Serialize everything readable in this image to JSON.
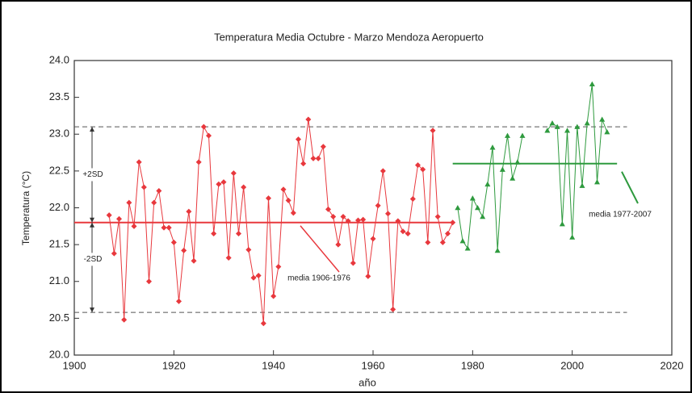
{
  "chart_data": {
    "type": "line",
    "title": "Temperatura Media Octubre - Marzo Mendoza Aeropuerto",
    "x_label": "año",
    "y_label": "Temperatura (°C)",
    "xlim": [
      1900,
      2020
    ],
    "xticks": [
      1900,
      1920,
      1940,
      1960,
      1980,
      2000,
      2020
    ],
    "ylim": [
      20,
      24
    ],
    "yticks": [
      {
        "value": 20,
        "label": "20.0"
      },
      20.5,
      {
        "value": 21,
        "label": "21.0"
      },
      21.5,
      {
        "value": 22,
        "label": "22.0"
      },
      22.5,
      {
        "value": 23,
        "label": "23.0"
      },
      23.5,
      {
        "value": 24,
        "label": "24.0"
      }
    ],
    "series": [
      {
        "name": "1906-1976",
        "color": "#e8383d",
        "marker": "diamond",
        "x": [
          1907,
          1908,
          1909,
          1910,
          1911,
          1912,
          1913,
          1914,
          1915,
          1916,
          1917,
          1918,
          1919,
          1920,
          1921,
          1922,
          1923,
          1924,
          1925,
          1926,
          1927,
          1928,
          1929,
          1930,
          1931,
          1932,
          1933,
          1934,
          1935,
          1936,
          1937,
          1938,
          1939,
          1940,
          1941,
          1942,
          1943,
          1944,
          1945,
          1946,
          1947,
          1948,
          1949,
          1950,
          1951,
          1952,
          1953,
          1954,
          1955,
          1956,
          1957,
          1958,
          1959,
          1960,
          1961,
          1962,
          1963,
          1964,
          1965,
          1966,
          1967,
          1968,
          1969,
          1970,
          1971,
          1972,
          1973,
          1974,
          1975,
          1976
        ],
        "values": [
          21.9,
          21.38,
          21.85,
          20.48,
          22.07,
          21.75,
          22.62,
          22.28,
          21.0,
          22.07,
          22.23,
          21.73,
          21.73,
          21.53,
          20.73,
          21.42,
          21.95,
          21.28,
          22.62,
          23.1,
          22.98,
          21.65,
          22.32,
          22.35,
          21.32,
          22.47,
          21.65,
          22.28,
          21.43,
          21.05,
          21.08,
          20.43,
          22.13,
          20.8,
          21.2,
          22.25,
          22.1,
          21.93,
          22.93,
          22.6,
          23.2,
          22.67,
          22.67,
          22.83,
          21.98,
          21.88,
          21.5,
          21.88,
          21.82,
          21.25,
          21.83,
          21.84,
          21.07,
          21.58,
          22.03,
          22.5,
          21.92,
          20.62,
          21.82,
          21.68,
          21.65,
          22.12,
          22.58,
          22.52,
          21.53,
          23.05,
          21.88,
          21.53,
          21.65,
          21.8
        ]
      },
      {
        "name": "1977-2007",
        "color": "#2e9a3e",
        "marker": "triangle",
        "x": [
          1977,
          1978,
          1979,
          1980,
          1981,
          1982,
          1983,
          1984,
          1985,
          1986,
          1987,
          1988,
          1989,
          1990,
          1991,
          1992,
          1993,
          1994,
          1995,
          1996,
          1997,
          1998,
          1999,
          2000,
          2001,
          2002,
          2003,
          2004,
          2005,
          2006,
          2007
        ],
        "values": [
          22.0,
          21.55,
          21.45,
          22.13,
          22.0,
          21.88,
          22.32,
          22.82,
          21.42,
          22.52,
          22.98,
          22.4,
          22.62,
          22.98,
          null,
          null,
          null,
          null,
          23.05,
          23.15,
          23.1,
          21.78,
          23.05,
          21.6,
          23.1,
          22.3,
          23.15,
          23.68,
          22.35,
          23.2,
          23.03
        ]
      }
    ],
    "hlines": [
      {
        "value": 21.8,
        "x0": 1900,
        "x1": 1976,
        "color": "#e8383d",
        "dash": false
      },
      {
        "value": 22.6,
        "x0": 1976,
        "x1": 2009,
        "color": "#2e9a3e",
        "dash": false
      },
      {
        "value": 23.1,
        "x0": 1900,
        "x1": 2011,
        "color": "#555555",
        "dash": true
      },
      {
        "value": 20.58,
        "x0": 1900,
        "x1": 2011,
        "color": "#555555",
        "dash": true
      }
    ],
    "annotations": [
      "+2SD",
      "-2SD",
      "media 1906-1976",
      "media 1977-2007"
    ]
  }
}
